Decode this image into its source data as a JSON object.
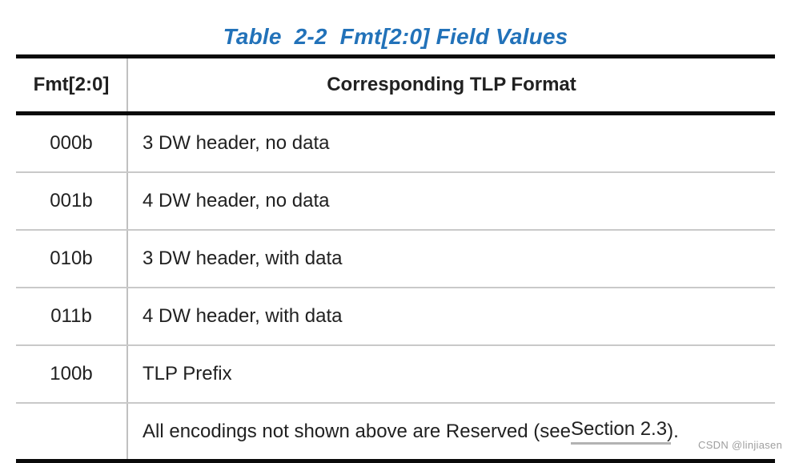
{
  "title": "Table  2-2  Fmt[2:0] Field Values",
  "table": {
    "col1_header": "Fmt[2:0]",
    "col2_header": "Corresponding TLP Format",
    "rows": [
      {
        "fmt": "000b",
        "format": "3 DW header, no data"
      },
      {
        "fmt": "001b",
        "format": "4 DW header, no data"
      },
      {
        "fmt": "010b",
        "format": "3 DW header, with data"
      },
      {
        "fmt": "011b",
        "format": "4 DW header, with data"
      },
      {
        "fmt": "100b",
        "format": "TLP Prefix"
      }
    ],
    "reserved_row": {
      "fmt": "",
      "prefix": "All encodings not shown above are Reserved (see ",
      "link": "Section 2.3",
      "suffix": " )."
    }
  },
  "watermark": "CSDN @linjiasen",
  "colors": {
    "title_blue": "#2272b9",
    "body_text": "#212121",
    "thick_rule": "#0a0a0a",
    "thin_rule": "#c9c9c9",
    "column_divider": "#c0c0c0",
    "link_underline": "#b3b3b3",
    "watermark_gray": "#9e9e9e"
  }
}
